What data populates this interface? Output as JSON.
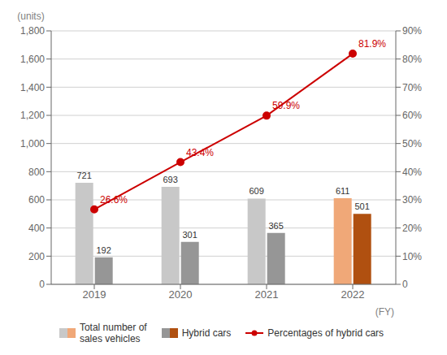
{
  "chart_data": {
    "type": "bar",
    "categories": [
      "2019",
      "2020",
      "2021",
      "2022"
    ],
    "series": [
      {
        "name": "Total number of\nsales vehicles",
        "type": "bar",
        "colors": [
          "#c8c8c8",
          "#c8c8c8",
          "#c8c8c8",
          "#f0a878"
        ],
        "values": [
          721,
          693,
          609,
          611
        ]
      },
      {
        "name": "Hybrid cars",
        "type": "bar",
        "colors": [
          "#969696",
          "#969696",
          "#969696",
          "#b05010"
        ],
        "values": [
          192,
          301,
          365,
          501
        ]
      },
      {
        "name": "Percentages of hybrid cars",
        "type": "line",
        "axis": "y2",
        "color": "#cc0000",
        "marker": "circle",
        "values": [
          26.6,
          43.4,
          59.9,
          81.9
        ],
        "value_labels": [
          "26.6%",
          "43.4%",
          "59.9%",
          "81.9%"
        ]
      }
    ],
    "ylim": [
      0,
      1800
    ],
    "yticks": [
      0,
      200,
      400,
      600,
      800,
      {
        "value": 1000,
        "label": "1,000"
      },
      {
        "value": 1200,
        "label": "1,200"
      },
      {
        "value": 1400,
        "label": "1,400"
      },
      {
        "value": 1600,
        "label": "1,600"
      },
      {
        "value": 1800,
        "label": "1,800"
      }
    ],
    "y2lim": [
      0,
      90
    ],
    "y2ticks": [
      0,
      {
        "value": 10,
        "label": "10%"
      },
      {
        "value": 20,
        "label": "20%"
      },
      {
        "value": 30,
        "label": "30%"
      },
      {
        "value": 40,
        "label": "40%"
      },
      {
        "value": 50,
        "label": "50%"
      },
      {
        "value": 60,
        "label": "60%"
      },
      {
        "value": 70,
        "label": "70%"
      },
      {
        "value": 80,
        "label": "80%"
      },
      {
        "value": 90,
        "label": "90%"
      }
    ],
    "ylabel": "(units)",
    "xlabel": "(FY)",
    "grid": true,
    "legend": "bottom",
    "data_labels": true
  }
}
